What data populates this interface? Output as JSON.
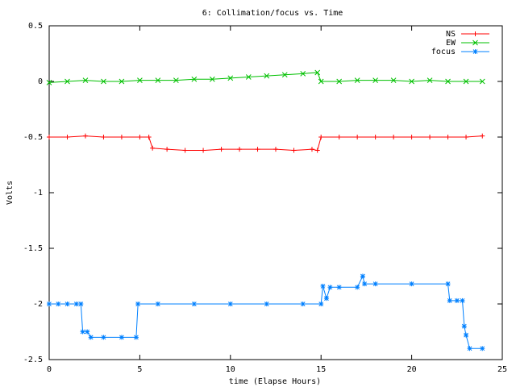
{
  "chart_data": {
    "type": "line",
    "title": "6: Collimation/focus vs. Time",
    "x_label": "time (Elapse Hours)",
    "y_label": "Volts",
    "xlim": [
      0,
      25
    ],
    "xticks": [
      0,
      5,
      10,
      15,
      20,
      25
    ],
    "ylim": [
      -2.5,
      0.5
    ],
    "yticks": [
      0.5,
      0,
      -0.5,
      -1,
      -1.5,
      -2,
      -2.5
    ],
    "legend": "top-right",
    "series": [
      {
        "name": "NS",
        "color": "#ff0000",
        "x": [
          0,
          1,
          2,
          3,
          4,
          5,
          5.5,
          5.7,
          6.5,
          7.5,
          8.5,
          9.5,
          10.5,
          11.5,
          12.5,
          13.5,
          14.5,
          14.8,
          15.0,
          16,
          17,
          18,
          19,
          20,
          21,
          22,
          23,
          23.9
        ],
        "values": [
          -0.5,
          -0.5,
          -0.49,
          -0.5,
          -0.5,
          -0.5,
          -0.5,
          -0.6,
          -0.61,
          -0.62,
          -0.62,
          -0.61,
          -0.61,
          -0.61,
          -0.61,
          -0.62,
          -0.61,
          -0.62,
          -0.5,
          -0.5,
          -0.5,
          -0.5,
          -0.5,
          -0.5,
          -0.5,
          -0.5,
          -0.5,
          -0.49
        ]
      },
      {
        "name": "EW",
        "color": "#00c000",
        "x": [
          0,
          1,
          2,
          3,
          4,
          5,
          6,
          7,
          8,
          9,
          10,
          11,
          12,
          13,
          14,
          14.8,
          15,
          16,
          17,
          18,
          19,
          20,
          21,
          22,
          23,
          23.9
        ],
        "values": [
          -0.01,
          0,
          0.01,
          0,
          0,
          0.01,
          0.01,
          0.01,
          0.02,
          0.02,
          0.03,
          0.04,
          0.05,
          0.06,
          0.07,
          0.08,
          0,
          0,
          0.01,
          0.01,
          0.01,
          0,
          0.01,
          0,
          0,
          0
        ]
      },
      {
        "name": "focus",
        "color": "#0080ff",
        "x": [
          0,
          0.5,
          1,
          1.5,
          1.75,
          1.85,
          2.1,
          2.3,
          3,
          4,
          4.8,
          4.9,
          6,
          8,
          10,
          12,
          14,
          15,
          15.1,
          15.3,
          15.5,
          16,
          17,
          17.3,
          17.4,
          18,
          20,
          22,
          22.1,
          22.5,
          22.8,
          22.9,
          23,
          23.2,
          23.9
        ],
        "values": [
          -2,
          -2,
          -2,
          -2,
          -2,
          -2.25,
          -2.25,
          -2.3,
          -2.3,
          -2.3,
          -2.3,
          -2,
          -2,
          -2,
          -2,
          -2,
          -2,
          -2,
          -1.84,
          -1.95,
          -1.85,
          -1.85,
          -1.85,
          -1.75,
          -1.82,
          -1.82,
          -1.82,
          -1.82,
          -1.97,
          -1.97,
          -1.97,
          -2.2,
          -2.28,
          -2.4,
          -2.4
        ]
      }
    ]
  }
}
